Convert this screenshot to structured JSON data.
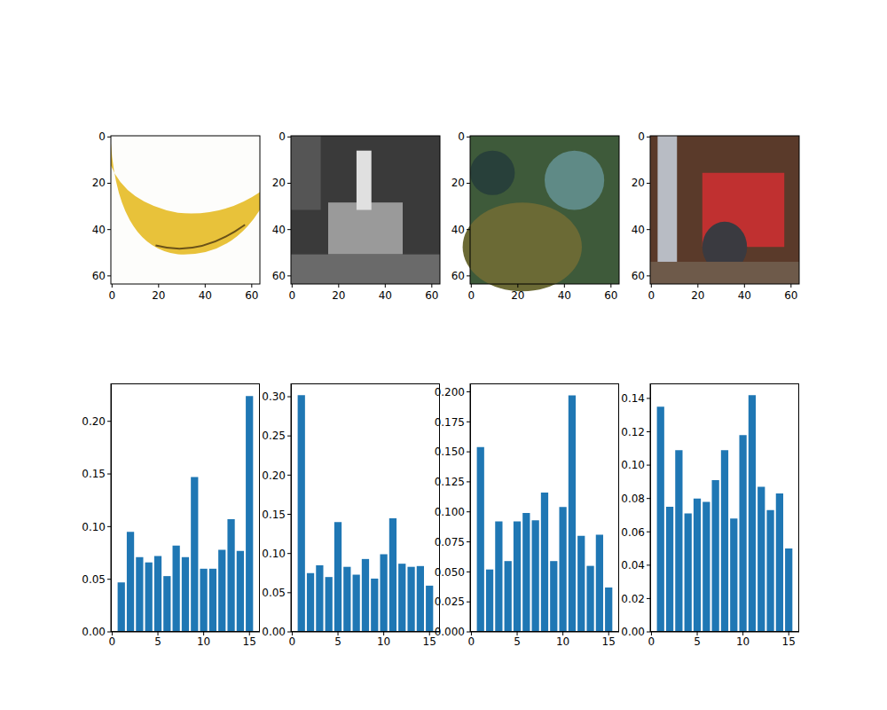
{
  "chart_data": [
    {
      "type": "image",
      "xlim": [
        -0.5,
        63.5
      ],
      "ylim": [
        63.5,
        -0.5
      ],
      "xticks": [
        0,
        20,
        40,
        60
      ],
      "yticks": [
        0,
        20,
        40,
        60
      ]
    },
    {
      "type": "image",
      "xlim": [
        -0.5,
        63.5
      ],
      "ylim": [
        63.5,
        -0.5
      ],
      "xticks": [
        0,
        20,
        40,
        60
      ],
      "yticks": [
        0,
        20,
        40,
        60
      ]
    },
    {
      "type": "image",
      "xlim": [
        -0.5,
        63.5
      ],
      "ylim": [
        63.5,
        -0.5
      ],
      "xticks": [
        0,
        20,
        40,
        60
      ],
      "yticks": [
        0,
        20,
        40,
        60
      ]
    },
    {
      "type": "image",
      "xlim": [
        -0.5,
        63.5
      ],
      "ylim": [
        63.5,
        -0.5
      ],
      "xticks": [
        0,
        20,
        40,
        60
      ],
      "yticks": [
        0,
        20,
        40,
        60
      ]
    },
    {
      "type": "bar",
      "color": "#1f77b4",
      "x": [
        1,
        2,
        3,
        4,
        5,
        6,
        7,
        8,
        9,
        10,
        11,
        12,
        13,
        14,
        15
      ],
      "values": [
        0.047,
        0.095,
        0.071,
        0.066,
        0.072,
        0.053,
        0.082,
        0.071,
        0.147,
        0.06,
        0.06,
        0.078,
        0.107,
        0.077,
        0.224
      ],
      "xlim": [
        -0.14,
        16.14
      ],
      "xticks": [
        0,
        5,
        10,
        15
      ],
      "ylim": [
        0,
        0.236
      ],
      "yticks": [
        {
          "value": 0,
          "label": "0.00"
        },
        {
          "value": 0.05,
          "label": "0.05"
        },
        {
          "value": 0.1,
          "label": "0.10"
        },
        {
          "value": 0.15,
          "label": "0.15"
        },
        {
          "value": 0.2,
          "label": "0.20"
        }
      ]
    },
    {
      "type": "bar",
      "color": "#1f77b4",
      "x": [
        1,
        2,
        3,
        4,
        5,
        6,
        7,
        8,
        9,
        10,
        11,
        12,
        13,
        14,
        15
      ],
      "values": [
        0.302,
        0.075,
        0.085,
        0.07,
        0.14,
        0.083,
        0.073,
        0.093,
        0.068,
        0.099,
        0.145,
        0.087,
        0.083,
        0.084,
        0.059
      ],
      "xlim": [
        -0.14,
        16.14
      ],
      "xticks": [
        0,
        5,
        10,
        15
      ],
      "ylim": [
        0,
        0.317
      ],
      "yticks": [
        {
          "value": 0,
          "label": "0.00"
        },
        {
          "value": 0.05,
          "label": "0.05"
        },
        {
          "value": 0.1,
          "label": "0.10"
        },
        {
          "value": 0.15,
          "label": "0.15"
        },
        {
          "value": 0.2,
          "label": "0.20"
        },
        {
          "value": 0.25,
          "label": "0.25"
        },
        {
          "value": 0.3,
          "label": "0.30"
        }
      ]
    },
    {
      "type": "bar",
      "color": "#1f77b4",
      "x": [
        1,
        2,
        3,
        4,
        5,
        6,
        7,
        8,
        9,
        10,
        11,
        12,
        13,
        14,
        15
      ],
      "values": [
        0.154,
        0.052,
        0.092,
        0.059,
        0.092,
        0.099,
        0.093,
        0.116,
        0.059,
        0.104,
        0.197,
        0.08,
        0.055,
        0.081,
        0.037
      ],
      "xlim": [
        -0.14,
        16.14
      ],
      "xticks": [
        0,
        5,
        10,
        15
      ],
      "ylim": [
        0,
        0.207
      ],
      "yticks": [
        {
          "value": 0,
          "label": "0.000"
        },
        {
          "value": 0.025,
          "label": "0.025"
        },
        {
          "value": 0.05,
          "label": "0.050"
        },
        {
          "value": 0.075,
          "label": "0.075"
        },
        {
          "value": 0.1,
          "label": "0.100"
        },
        {
          "value": 0.125,
          "label": "0.125"
        },
        {
          "value": 0.15,
          "label": "0.150"
        },
        {
          "value": 0.175,
          "label": "0.175"
        },
        {
          "value": 0.2,
          "label": "0.200"
        }
      ]
    },
    {
      "type": "bar",
      "color": "#1f77b4",
      "x": [
        1,
        2,
        3,
        4,
        5,
        6,
        7,
        8,
        9,
        10,
        11,
        12,
        13,
        14,
        15
      ],
      "values": [
        0.135,
        0.075,
        0.109,
        0.071,
        0.08,
        0.078,
        0.091,
        0.109,
        0.068,
        0.118,
        0.142,
        0.087,
        0.073,
        0.083,
        0.05
      ],
      "xlim": [
        -0.14,
        16.14
      ],
      "xticks": [
        0,
        5,
        10,
        15
      ],
      "ylim": [
        0,
        0.149
      ],
      "yticks": [
        {
          "value": 0,
          "label": "0.00"
        },
        {
          "value": 0.02,
          "label": "0.02"
        },
        {
          "value": 0.04,
          "label": "0.04"
        },
        {
          "value": 0.06,
          "label": "0.06"
        },
        {
          "value": 0.08,
          "label": "0.08"
        },
        {
          "value": 0.1,
          "label": "0.10"
        },
        {
          "value": 0.12,
          "label": "0.12"
        },
        {
          "value": 0.14,
          "label": "0.14"
        }
      ]
    }
  ]
}
